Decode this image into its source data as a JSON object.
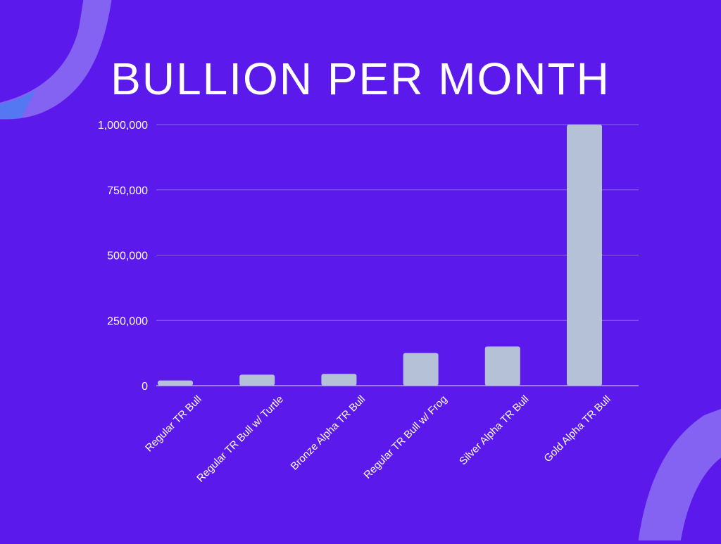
{
  "theme": {
    "background": "#5b1aeb",
    "bar_color": "#b4c1d6",
    "grid_color": "#8b67f0",
    "text_color": "#ffffff",
    "decor_color": "#8a6cf3"
  },
  "chart_data": {
    "type": "bar",
    "title": "BULLION PER MONTH",
    "categories": [
      "Regular TR Bull",
      "Regular TR Bull w/ Turtle",
      "Bronze Alpha TR Bull",
      "Regular TR Bull w/ Frog",
      "Silver Alpha TR Bull",
      "Gold Alpha TR Bull"
    ],
    "values": [
      20000,
      42000,
      45000,
      125000,
      150000,
      1000000
    ],
    "xlabel": "",
    "ylabel": "",
    "ylim": [
      0,
      1000000
    ],
    "yticks": [
      0,
      250000,
      500000,
      750000,
      1000000
    ],
    "ytick_labels": [
      "0",
      "250,000",
      "500,000",
      "750,000",
      "1,000,000"
    ],
    "grid": true,
    "legend": "none"
  }
}
